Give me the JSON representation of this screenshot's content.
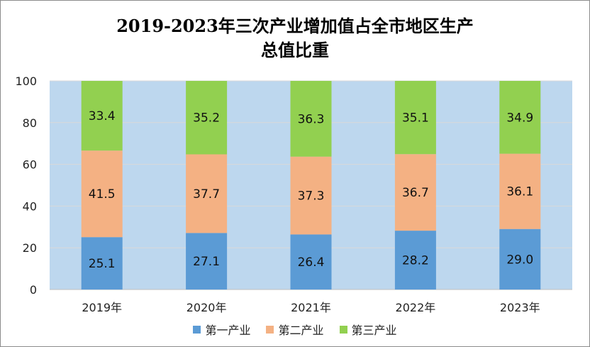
{
  "chart_data": {
    "type": "bar",
    "stacked": true,
    "title_lines": [
      "2019-2023年三次产业增加值占全市地区生产",
      "总值比重"
    ],
    "categories": [
      "2019年",
      "2020年",
      "2021年",
      "2022年",
      "2023年"
    ],
    "series": [
      {
        "name": "第一产业",
        "color": "#5b9bd5",
        "values": [
          25.1,
          27.1,
          26.4,
          28.2,
          29.0
        ]
      },
      {
        "name": "第二产业",
        "color": "#f4b183",
        "values": [
          41.5,
          37.7,
          37.3,
          36.7,
          36.1
        ]
      },
      {
        "name": "第三产业",
        "color": "#92d050",
        "values": [
          33.4,
          35.2,
          36.3,
          35.1,
          34.9
        ]
      }
    ],
    "ylim": [
      0,
      100
    ],
    "yticks": [
      "0",
      "20",
      "40",
      "60",
      "80",
      "100"
    ],
    "plot_background": "#bdd7ee",
    "grid": true,
    "legend_position": "bottom"
  }
}
